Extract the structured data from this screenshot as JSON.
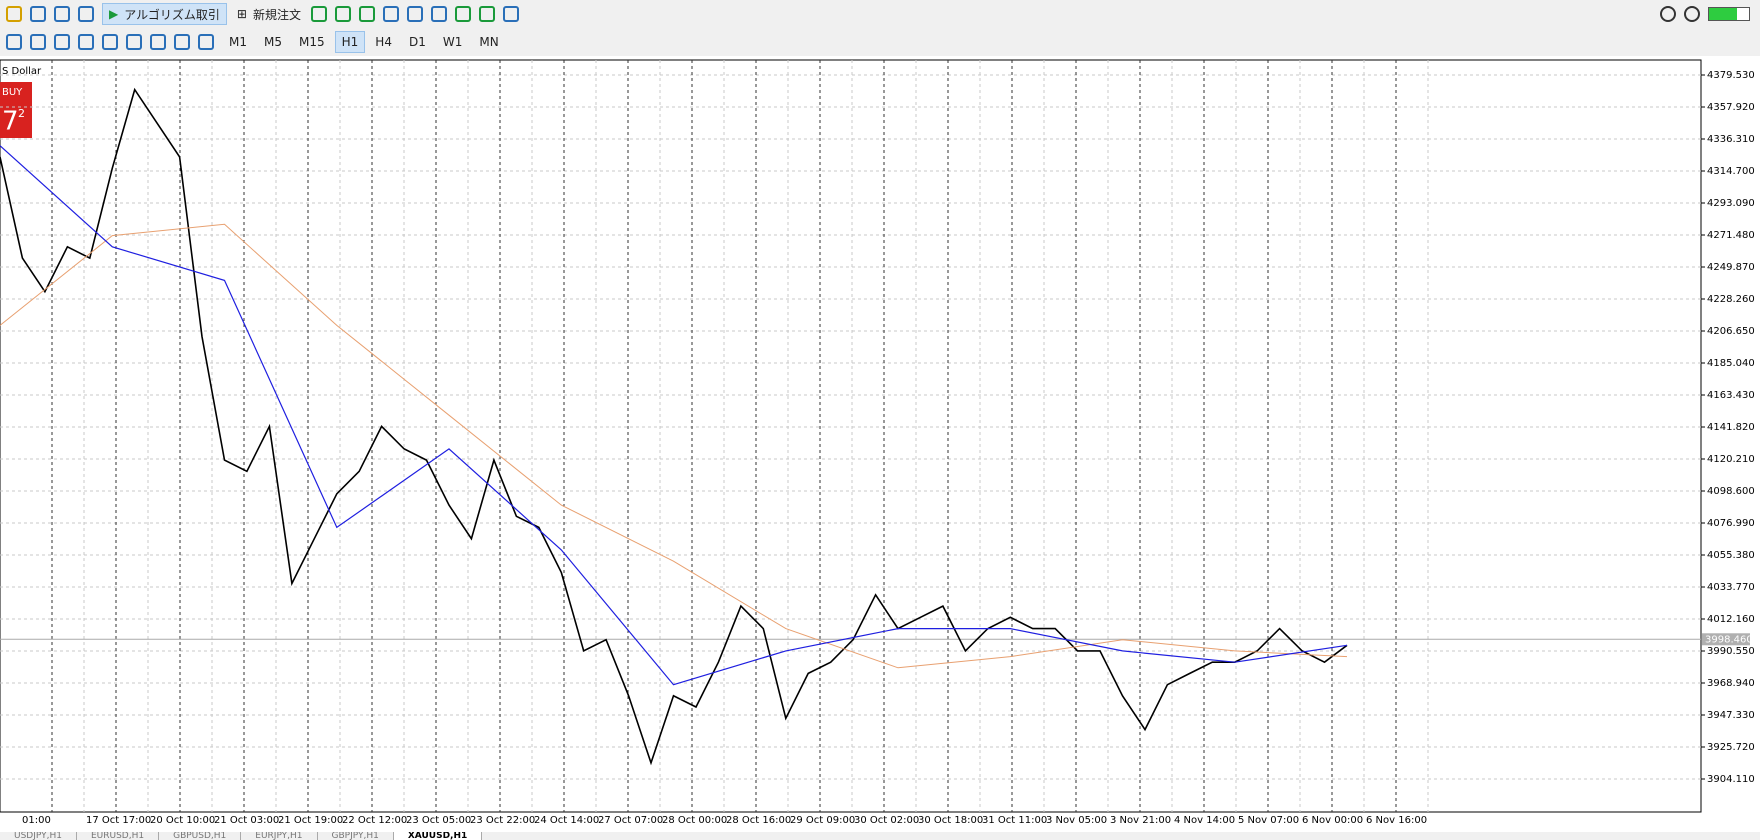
{
  "toolbar": {
    "algo": "アルゴリズム取引",
    "new_order": "新規注文",
    "timeframes": [
      "M1",
      "M5",
      "M15",
      "H1",
      "H4",
      "D1",
      "W1",
      "MN"
    ],
    "active_timeframe": "H1"
  },
  "chart": {
    "symbol": "S Dollar",
    "buy": "BUY",
    "price_big": "7",
    "price_small": "2",
    "price_ticks": [
      {
        "value": 4379.53,
        "label": "4379.530"
      },
      {
        "value": 4357.92,
        "label": "4357.920"
      },
      {
        "value": 4336.31,
        "label": "4336.310"
      },
      {
        "value": 4314.7,
        "label": "4314.700"
      },
      {
        "value": 4293.09,
        "label": "4293.090"
      },
      {
        "value": 4271.48,
        "label": "4271.480"
      },
      {
        "value": 4249.87,
        "label": "4249.870"
      },
      {
        "value": 4228.26,
        "label": "4228.260"
      },
      {
        "value": 4206.65,
        "label": "4206.650"
      },
      {
        "value": 4185.04,
        "label": "4185.040"
      },
      {
        "value": 4163.43,
        "label": "4163.430"
      },
      {
        "value": 4141.82,
        "label": "4141.820"
      },
      {
        "value": 4120.21,
        "label": "4120.210"
      },
      {
        "value": 4098.6,
        "label": "4098.600"
      },
      {
        "value": 4076.99,
        "label": "4076.990"
      },
      {
        "value": 4055.38,
        "label": "4055.380"
      },
      {
        "value": 4033.77,
        "label": "4033.770"
      },
      {
        "value": 4012.16,
        "label": "4012.160"
      },
      {
        "value": 3990.55,
        "label": "3990.550"
      },
      {
        "value": 3968.94,
        "label": "3968.940"
      },
      {
        "value": 3947.33,
        "label": "3947.330"
      },
      {
        "value": 3925.72,
        "label": "3925.720"
      },
      {
        "value": 3904.11,
        "label": "3904.110"
      }
    ],
    "current_price": {
      "value": 3998.46,
      "label": "3998.460"
    },
    "time_labels": [
      "01:00",
      "17 Oct 17:00",
      "20 Oct 10:00",
      "21 Oct 03:00",
      "21 Oct 19:00",
      "22 Oct 12:00",
      "23 Oct 05:00",
      "23 Oct 22:00",
      "24 Oct 14:00",
      "27 Oct 07:00",
      "28 Oct 00:00",
      "28 Oct 16:00",
      "29 Oct 09:00",
      "30 Oct 02:00",
      "30 Oct 18:00",
      "31 Oct 11:00",
      "3 Nov 05:00",
      "3 Nov 21:00",
      "4 Nov 14:00",
      "5 Nov 07:00",
      "6 Nov 00:00",
      "6 Nov 16:00"
    ],
    "closes": [
      4324.2,
      4255.9,
      4233.2,
      4263.5,
      4255.9,
      4316.6,
      4369.7,
      4346.9,
      4324.2,
      4202.9,
      4119.5,
      4111.9,
      4142.2,
      4036.1,
      4066.4,
      4096.7,
      4111.9,
      4142.2,
      4127.0,
      4119.5,
      4089.1,
      4066.4,
      4119.5,
      4081.5,
      4074.0,
      4043.6,
      3990.6,
      3998.2,
      3960.3,
      3915.0,
      3960.3,
      3952.7,
      3983.0,
      4020.9,
      4005.7,
      3945.1,
      3975.4,
      3983.0,
      3998.2,
      4028.5,
      4005.7,
      4013.3,
      4020.9,
      3990.6,
      4005.7,
      4013.3,
      4005.7,
      4005.7,
      3990.6,
      3990.6,
      3960.3,
      3937.5,
      3967.8,
      3975.4,
      3983.0,
      3983.0,
      3990.6,
      4005.7,
      3990.6,
      3983.0,
      3994.4
    ],
    "ma_fast": {
      "color": "#1f1fe0",
      "values": [
        4331.8,
        4263.5,
        4240.8,
        4074.0,
        4127.0,
        4058.8,
        3967.8,
        3990.6,
        4005.7,
        4005.7,
        3990.6,
        3983.0,
        3994.4
      ]
    },
    "ma_slow": {
      "color": "#e8a070",
      "values": [
        4210.4,
        4271.1,
        4278.7,
        4210.4,
        4149.8,
        4089.1,
        4051.2,
        4005.7,
        3979.2,
        3986.8,
        3998.2,
        3990.6,
        3986.8
      ]
    }
  },
  "tabs": [
    "USDJPY,H1",
    "EURUSD,H1",
    "GBPUSD,H1",
    "EURJPY,H1",
    "GBPJPY,H1",
    "XAUUSD,H1"
  ],
  "active_tab": "XAUUSD,H1"
}
